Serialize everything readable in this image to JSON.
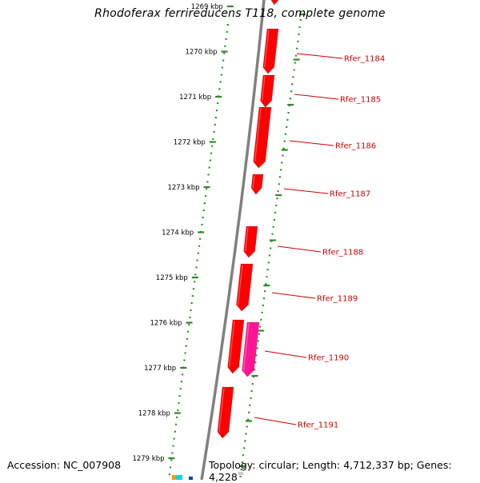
{
  "title": "Rhodoferax ferrireducens T118, complete genome",
  "footer": {
    "accession": "Accession: NC_007908",
    "summary": "Topology: circular; Length: 4,712,337 bp; Genes: 4,228"
  },
  "colors": {
    "backbone": "#808080",
    "tick_dots": "#2e8b22",
    "gene_fill": "#ff0000",
    "gene_highlight": "#ff1493",
    "label_text": "#cc0000"
  },
  "ticks": [
    "1269 kbp",
    "1270 kbp",
    "1271 kbp",
    "1272 kbp",
    "1273 kbp",
    "1274 kbp",
    "1275 kbp",
    "1276 kbp",
    "1277 kbp",
    "1278 kbp",
    "1279 kbp"
  ],
  "genes": [
    {
      "label": "Rfer_1184",
      "color": "#ff0000"
    },
    {
      "label": "Rfer_1185",
      "color": "#ff0000"
    },
    {
      "label": "Rfer_1186",
      "color": "#ff0000"
    },
    {
      "label": "Rfer_1187",
      "color": "#ff0000"
    },
    {
      "label": "Rfer_1188",
      "color": "#ff0000"
    },
    {
      "label": "Rfer_1189",
      "color": "#ff0000"
    },
    {
      "label": "Rfer_1190",
      "color": "#ff1493"
    },
    {
      "label": "Rfer_1191",
      "color": "#ff0000"
    }
  ],
  "unlabeled_gene_color": "#ff0000"
}
